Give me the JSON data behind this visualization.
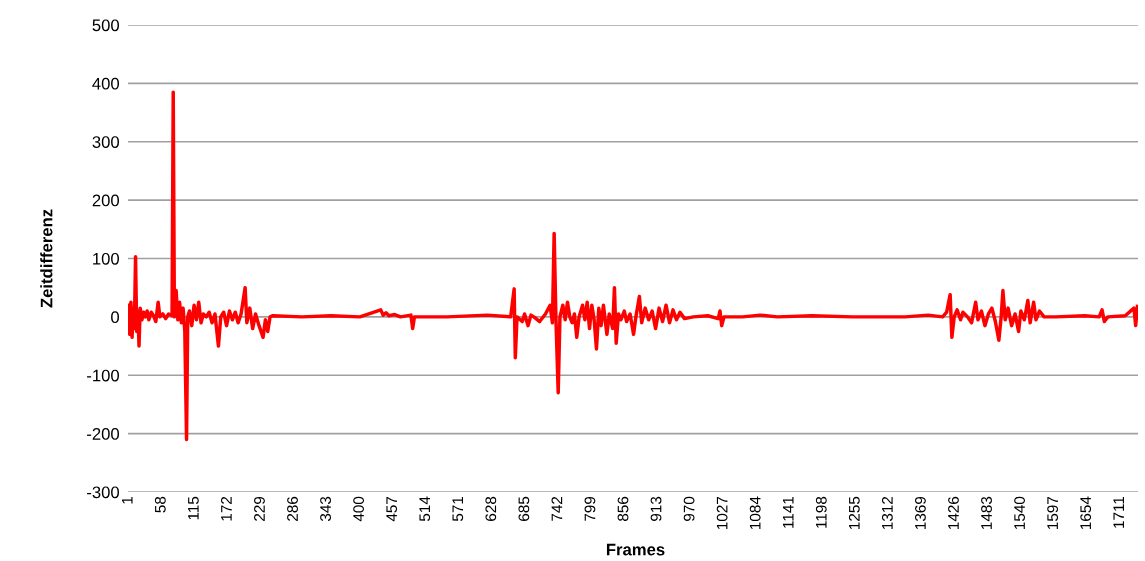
{
  "chart_data": {
    "type": "line",
    "xlabel": "Frames",
    "ylabel": "Zeitdifferenz",
    "x": [
      1,
      3,
      5,
      7,
      9,
      11,
      13,
      15,
      17,
      19,
      21,
      24,
      27,
      30,
      33,
      36,
      40,
      44,
      48,
      52,
      55,
      60,
      65,
      70,
      76,
      78,
      80,
      83,
      86,
      89,
      92,
      95,
      98,
      101,
      103,
      106,
      110,
      114,
      118,
      122,
      126,
      130,
      135,
      140,
      145,
      150,
      156,
      160,
      165,
      170,
      175,
      180,
      185,
      190,
      195,
      202,
      205,
      210,
      215,
      220,
      226,
      233,
      237,
      241,
      245,
      250,
      300,
      350,
      400,
      436,
      440,
      445,
      450,
      460,
      470,
      488,
      491,
      494,
      550,
      620,
      660,
      666,
      668,
      671,
      680,
      684,
      690,
      695,
      700,
      710,
      720,
      728,
      732,
      735,
      738,
      742,
      745,
      750,
      754,
      758,
      762,
      766,
      770,
      774,
      778,
      784,
      788,
      792,
      796,
      800,
      804,
      808,
      812,
      816,
      820,
      826,
      830,
      836,
      839,
      842,
      846,
      850,
      856,
      860,
      866,
      872,
      876,
      882,
      886,
      892,
      898,
      904,
      910,
      916,
      922,
      928,
      934,
      940,
      946,
      952,
      960,
      975,
      1000,
      1018,
      1021,
      1024,
      1028,
      1060,
      1090,
      1120,
      1180,
      1250,
      1340,
      1380,
      1405,
      1412,
      1418,
      1421,
      1425,
      1430,
      1436,
      1440,
      1448,
      1455,
      1462,
      1466,
      1472,
      1478,
      1484,
      1490,
      1496,
      1502,
      1506,
      1509,
      1513,
      1518,
      1524,
      1530,
      1536,
      1540,
      1546,
      1552,
      1556,
      1562,
      1566,
      1572,
      1580,
      1600,
      1650,
      1675,
      1680,
      1684,
      1690,
      1720,
      1735,
      1738,
      1741
    ],
    "series": [
      {
        "color": "#ff0000",
        "values": [
          20,
          -30,
          25,
          -35,
          15,
          -20,
          103,
          -25,
          10,
          -50,
          15,
          -5,
          8,
          0,
          10,
          -5,
          8,
          2,
          -8,
          25,
          0,
          5,
          -3,
          5,
          2,
          385,
          0,
          45,
          -5,
          25,
          -10,
          15,
          -25,
          -210,
          0,
          10,
          -15,
          20,
          -5,
          25,
          -10,
          5,
          0,
          8,
          -10,
          5,
          -50,
          0,
          8,
          -15,
          10,
          -5,
          8,
          -10,
          5,
          50,
          -10,
          15,
          -20,
          5,
          -15,
          -35,
          -5,
          -25,
          0,
          2,
          0,
          2,
          0,
          12,
          3,
          7,
          2,
          4,
          0,
          3,
          -20,
          0,
          0,
          3,
          0,
          48,
          -70,
          0,
          -8,
          5,
          -15,
          3,
          0,
          -8,
          5,
          20,
          -10,
          143,
          0,
          -130,
          0,
          20,
          -5,
          25,
          0,
          -10,
          5,
          -35,
          0,
          20,
          -5,
          25,
          -20,
          20,
          -5,
          -55,
          15,
          -15,
          20,
          -30,
          5,
          -20,
          50,
          -45,
          5,
          -5,
          10,
          -8,
          5,
          -30,
          0,
          35,
          -10,
          15,
          -5,
          10,
          -20,
          15,
          -8,
          20,
          -10,
          12,
          -5,
          8,
          -3,
          0,
          2,
          -3,
          10,
          -15,
          0,
          0,
          3,
          0,
          2,
          0,
          0,
          3,
          0,
          8,
          38,
          -35,
          0,
          12,
          -5,
          8,
          0,
          -10,
          25,
          -5,
          10,
          -15,
          5,
          15,
          -8,
          -40,
          0,
          45,
          -5,
          15,
          -15,
          5,
          -25,
          10,
          -5,
          28,
          -10,
          25,
          -5,
          10,
          0,
          0,
          2,
          0,
          12,
          -8,
          0,
          2,
          15,
          -15,
          18
        ]
      }
    ],
    "xlim": [
      0,
      1742
    ],
    "xticks": [
      1,
      58,
      115,
      172,
      229,
      286,
      343,
      400,
      457,
      514,
      571,
      628,
      685,
      742,
      799,
      856,
      913,
      970,
      1027,
      1084,
      1141,
      1198,
      1255,
      1312,
      1369,
      1426,
      1483,
      1540,
      1597,
      1654,
      1711
    ],
    "ylim": [
      -300,
      500
    ],
    "yticks": [
      -300,
      -200,
      -100,
      0,
      100,
      200,
      300,
      400,
      500
    ],
    "grid": "y",
    "legend": false,
    "marker": "none",
    "line_style": "solid"
  }
}
